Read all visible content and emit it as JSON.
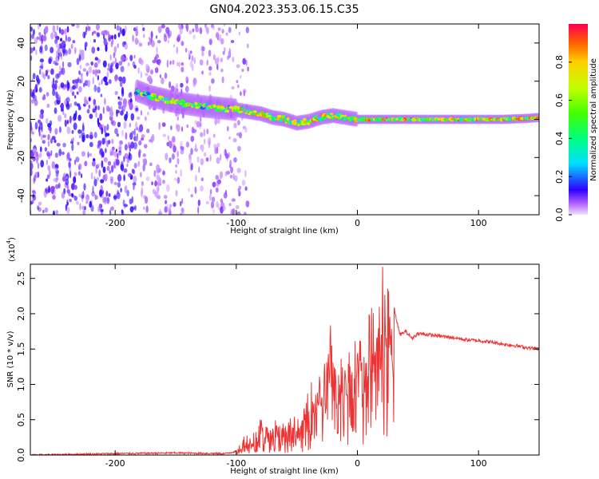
{
  "title": "GN04.2023.353.06.15.C35",
  "chart_data": [
    {
      "type": "heatmap",
      "xlabel": "Height of straight line (km)",
      "ylabel": "Frequency (Hz)",
      "xlim": [
        -270,
        150
      ],
      "ylim": [
        -50,
        50
      ],
      "xticks": [
        -200,
        -100,
        0,
        100
      ],
      "yticks": [
        -40,
        -20,
        0,
        20,
        40
      ],
      "colorbar": {
        "label": "Normalized spectral amplitude",
        "range": [
          0,
          1
        ],
        "ticks": [
          "0.0",
          "0.2",
          "0.4",
          "0.6",
          "0.8"
        ]
      },
      "ridge": {
        "x": [
          -182,
          -170,
          -150,
          -130,
          -115,
          -100,
          -90,
          -80,
          -70,
          -60,
          -50,
          -40,
          -30,
          -20,
          -10,
          0,
          20,
          40,
          60,
          80,
          100,
          120,
          140,
          150
        ],
        "frequency": [
          15,
          12,
          9,
          7,
          6,
          5,
          4,
          3,
          1,
          0,
          -2,
          -1,
          1,
          2,
          1,
          0,
          0,
          0,
          0,
          0,
          0,
          0,
          0.5,
          1
        ]
      }
    },
    {
      "type": "line",
      "xlabel": "Height of straight line (km)",
      "ylabel": "SNR (10 * v/v)",
      "y_multiplier": "(x10",
      "y_multiplier_exp": "4",
      "xlim": [
        -270,
        150
      ],
      "ylim": [
        0,
        2.7
      ],
      "xticks": [
        -200,
        -100,
        0,
        100
      ],
      "yticks": [
        "0.0",
        "0.5",
        "1.0",
        "1.5",
        "2.0",
        "2.5"
      ],
      "series": [
        {
          "color": "#ee3333",
          "x": [
            -270,
            -200,
            -150,
            -110,
            -100,
            -95,
            -90,
            -85,
            -80,
            -75,
            -70,
            -65,
            -60,
            -55,
            -50,
            -45,
            -40,
            -35,
            -30,
            -25,
            -22,
            -20,
            -18,
            -15,
            -10,
            -5,
            0,
            5,
            10,
            15,
            20,
            22,
            24,
            26,
            28,
            30,
            35,
            40,
            45,
            50,
            60,
            70,
            80,
            90,
            100,
            110,
            120,
            130,
            140,
            150
          ],
          "y": [
            0.0,
            0.02,
            0.03,
            0.02,
            0.05,
            0.15,
            0.2,
            0.25,
            0.35,
            0.3,
            0.4,
            0.35,
            0.3,
            0.45,
            0.35,
            0.4,
            0.7,
            0.85,
            0.9,
            1.1,
            1.45,
            1.2,
            0.9,
            1.0,
            1.2,
            1.2,
            1.3,
            1.4,
            1.55,
            1.7,
            1.75,
            2.6,
            1.9,
            1.8,
            1.75,
            2.1,
            1.7,
            1.75,
            1.65,
            1.72,
            1.7,
            1.68,
            1.66,
            1.63,
            1.62,
            1.6,
            1.57,
            1.55,
            1.52,
            1.5
          ]
        }
      ]
    }
  ]
}
